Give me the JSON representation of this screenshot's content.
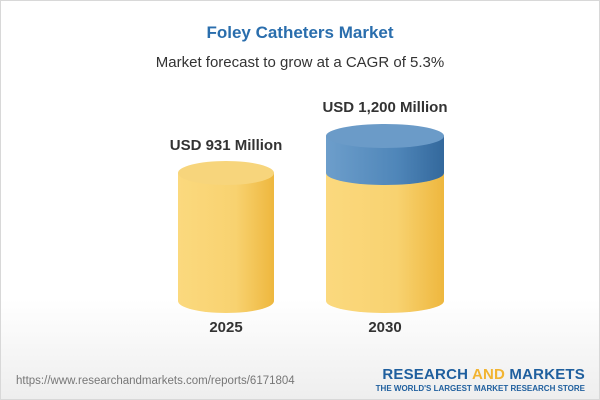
{
  "title": "Foley Catheters Market",
  "subtitle": "Market forecast to grow at a CAGR of 5.3%",
  "chart_data": {
    "type": "bar",
    "categories": [
      "2025",
      "2030"
    ],
    "values": [
      931,
      1200
    ],
    "data_labels": [
      "USD 931 Million",
      "USD 1,200 Million"
    ],
    "unit": "USD Million",
    "colors": {
      "bar": "#f5c85a",
      "growth": "#4a82b5"
    }
  },
  "footer": {
    "url": "https://www.researchandmarkets.com/reports/6171804",
    "logo_a": "RESEARCH ",
    "logo_and": "AND",
    "logo_b": " MARKETS",
    "tagline": "THE WORLD'S LARGEST MARKET RESEARCH STORE"
  }
}
